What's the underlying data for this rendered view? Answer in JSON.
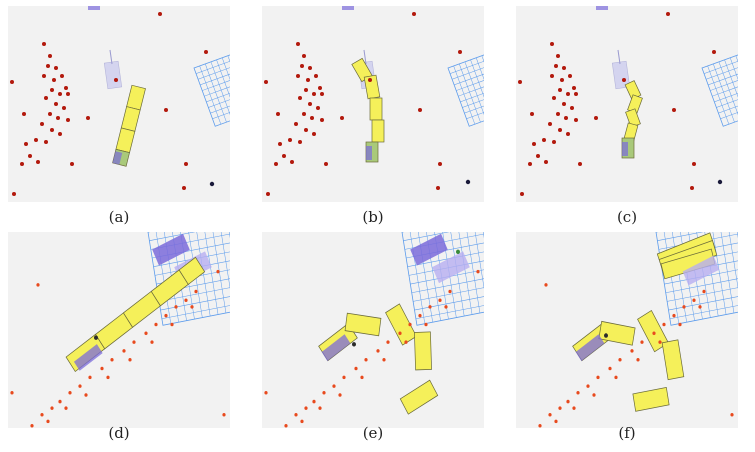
{
  "panels": [
    {
      "caption": "(a)"
    },
    {
      "caption": "(b)"
    },
    {
      "caption": "(c)"
    },
    {
      "caption": "(d)"
    },
    {
      "caption": "(e)"
    },
    {
      "caption": "(f)"
    }
  ],
  "colors": {
    "background": "#f2f2f2",
    "dots_top": "#b3190d",
    "dots_bottom": "#e84a1e",
    "segment_fill": "#f5f05a",
    "segment_edge": "#6b6b3a",
    "purple": "#7b6bdb",
    "grid": "#5d9cec",
    "target_dot": "#1a1a3a"
  }
}
